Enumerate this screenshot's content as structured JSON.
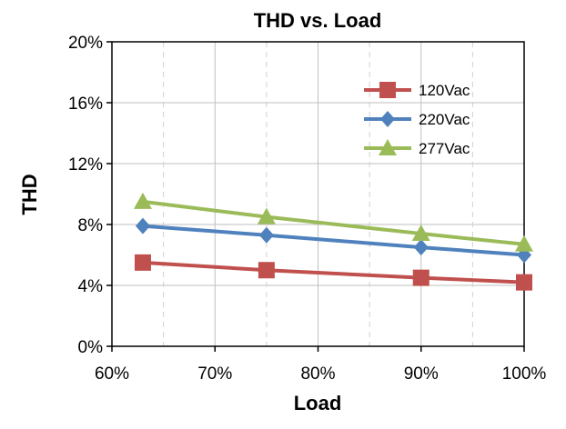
{
  "chart_data": {
    "type": "line",
    "title": "THD vs. Load",
    "xlabel": "Load",
    "ylabel": "THD",
    "xlim": [
      60,
      100
    ],
    "ylim": [
      0,
      20
    ],
    "x_ticks": [
      60,
      70,
      80,
      90,
      100
    ],
    "y_ticks": [
      0,
      4,
      8,
      12,
      16,
      20
    ],
    "x_tick_labels": [
      "60%",
      "70%",
      "80%",
      "90%",
      "100%"
    ],
    "y_tick_labels": [
      "0%",
      "4%",
      "8%",
      "12%",
      "16%",
      "20%"
    ],
    "grid": true,
    "legend_position": "top-right",
    "x": [
      63,
      75,
      90,
      100
    ],
    "series": [
      {
        "name": "120Vac",
        "values": [
          5.5,
          5.0,
          4.5,
          4.2
        ],
        "color": "#c0504d",
        "marker": "square"
      },
      {
        "name": "220Vac",
        "values": [
          7.9,
          7.3,
          6.5,
          6.0
        ],
        "color": "#4f81bd",
        "marker": "diamond"
      },
      {
        "name": "277Vac",
        "values": [
          9.5,
          8.5,
          7.4,
          6.7
        ],
        "color": "#9bbb59",
        "marker": "triangle"
      }
    ]
  }
}
